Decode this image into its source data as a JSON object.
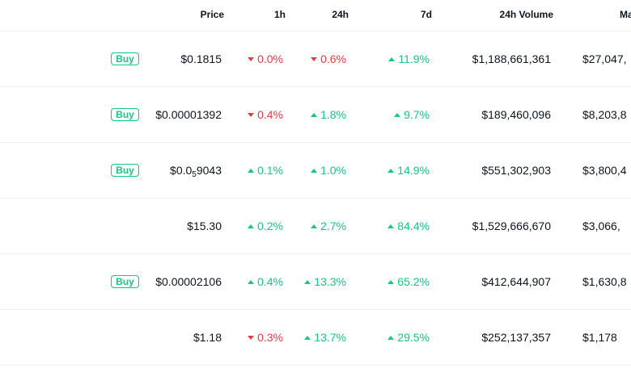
{
  "header": {
    "price": "Price",
    "h1": "1h",
    "h24": "24h",
    "d7": "7d",
    "volume": "24h Volume",
    "mcap": "Ma"
  },
  "buy_label": "Buy",
  "colors": {
    "up": "#16c784",
    "down": "#ea3943"
  },
  "rows": [
    {
      "buy": true,
      "price": "$0.1815",
      "h1": "0.0%",
      "h1_dir": "down",
      "h24": "0.6%",
      "h24_dir": "down",
      "d7": "11.9%",
      "d7_dir": "up",
      "volume": "$1,188,661,361",
      "mcap": "$27,047,"
    },
    {
      "buy": true,
      "price": "$0.00001392",
      "h1": "0.4%",
      "h1_dir": "down",
      "h24": "1.8%",
      "h24_dir": "up",
      "d7": "9.7%",
      "d7_dir": "up",
      "volume": "$189,460,096",
      "mcap": "$8,203,8"
    },
    {
      "buy": true,
      "price_prefix": "$0.0",
      "price_sub": "5",
      "price_suffix": "9043",
      "h1": "0.1%",
      "h1_dir": "up",
      "h24": "1.0%",
      "h24_dir": "up",
      "d7": "14.9%",
      "d7_dir": "up",
      "volume": "$551,302,903",
      "mcap": "$3,800,4"
    },
    {
      "buy": false,
      "price": "$15.30",
      "h1": "0.2%",
      "h1_dir": "up",
      "h24": "2.7%",
      "h24_dir": "up",
      "d7": "84.4%",
      "d7_dir": "up",
      "volume": "$1,529,666,670",
      "mcap": "$3,066,"
    },
    {
      "buy": true,
      "price": "$0.00002106",
      "h1": "0.4%",
      "h1_dir": "up",
      "h24": "13.3%",
      "h24_dir": "up",
      "d7": "65.2%",
      "d7_dir": "up",
      "volume": "$412,644,907",
      "mcap": "$1,630,8"
    },
    {
      "buy": false,
      "price": "$1.18",
      "h1": "0.3%",
      "h1_dir": "down",
      "h24": "13.7%",
      "h24_dir": "up",
      "d7": "29.5%",
      "d7_dir": "up",
      "volume": "$252,137,357",
      "mcap": "$1,178"
    }
  ]
}
